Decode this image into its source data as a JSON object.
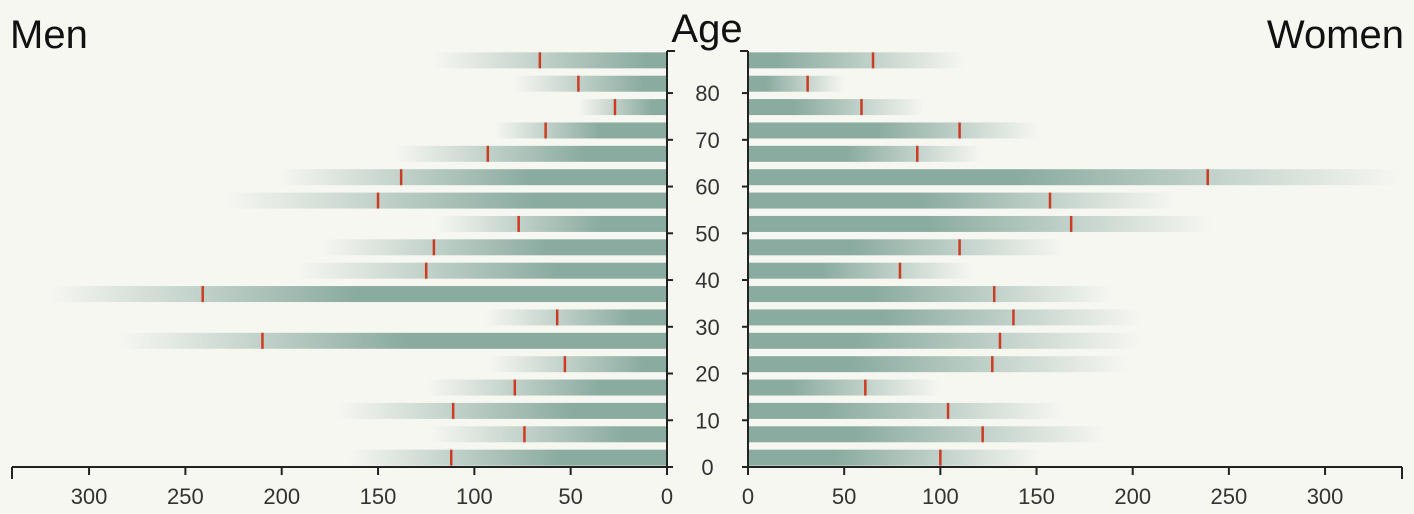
{
  "chart_data": {
    "type": "bar",
    "subtype": "population-pyramid-uncertainty",
    "title": "Age",
    "left_label": "Men",
    "right_label": "Women",
    "age_ticks": [
      0,
      10,
      20,
      30,
      40,
      50,
      60,
      70,
      80
    ],
    "age_range": [
      0,
      89
    ],
    "age_groups": [
      87,
      82,
      77,
      72,
      67,
      62,
      57,
      52,
      47,
      42,
      37,
      32,
      27,
      22,
      17,
      12,
      7,
      2
    ],
    "x_ticks": [
      0,
      50,
      100,
      150,
      200,
      250,
      300
    ],
    "x_range": [
      0,
      340
    ],
    "colors": {
      "bar": "#8aaba0",
      "marker": "#cc3b22",
      "axis": "#222222"
    },
    "series": [
      {
        "name": "Men",
        "estimates": [
          66,
          46,
          27,
          63,
          93,
          138,
          150,
          77,
          121,
          125,
          241,
          57,
          210,
          53,
          79,
          111,
          74,
          112
        ],
        "lower": [
          10,
          12,
          8,
          35,
          43,
          70,
          68,
          34,
          62,
          57,
          161,
          18,
          135,
          12,
          35,
          49,
          22,
          55
        ],
        "upper": [
          122,
          80,
          46,
          90,
          142,
          203,
          230,
          120,
          180,
          193,
          322,
          95,
          285,
          93,
          125,
          172,
          124,
          166
        ]
      },
      {
        "name": "Women",
        "estimates": [
          65,
          31,
          59,
          110,
          88,
          239,
          157,
          168,
          110,
          79,
          128,
          138,
          131,
          127,
          61,
          104,
          122,
          100
        ],
        "lower": [
          15,
          9,
          24,
          67,
          51,
          139,
          89,
          92,
          54,
          38,
          65,
          70,
          56,
          53,
          22,
          40,
          55,
          45
        ],
        "upper": [
          113,
          50,
          92,
          152,
          122,
          340,
          223,
          242,
          165,
          117,
          190,
          205,
          205,
          198,
          100,
          165,
          187,
          153
        ]
      }
    ]
  }
}
